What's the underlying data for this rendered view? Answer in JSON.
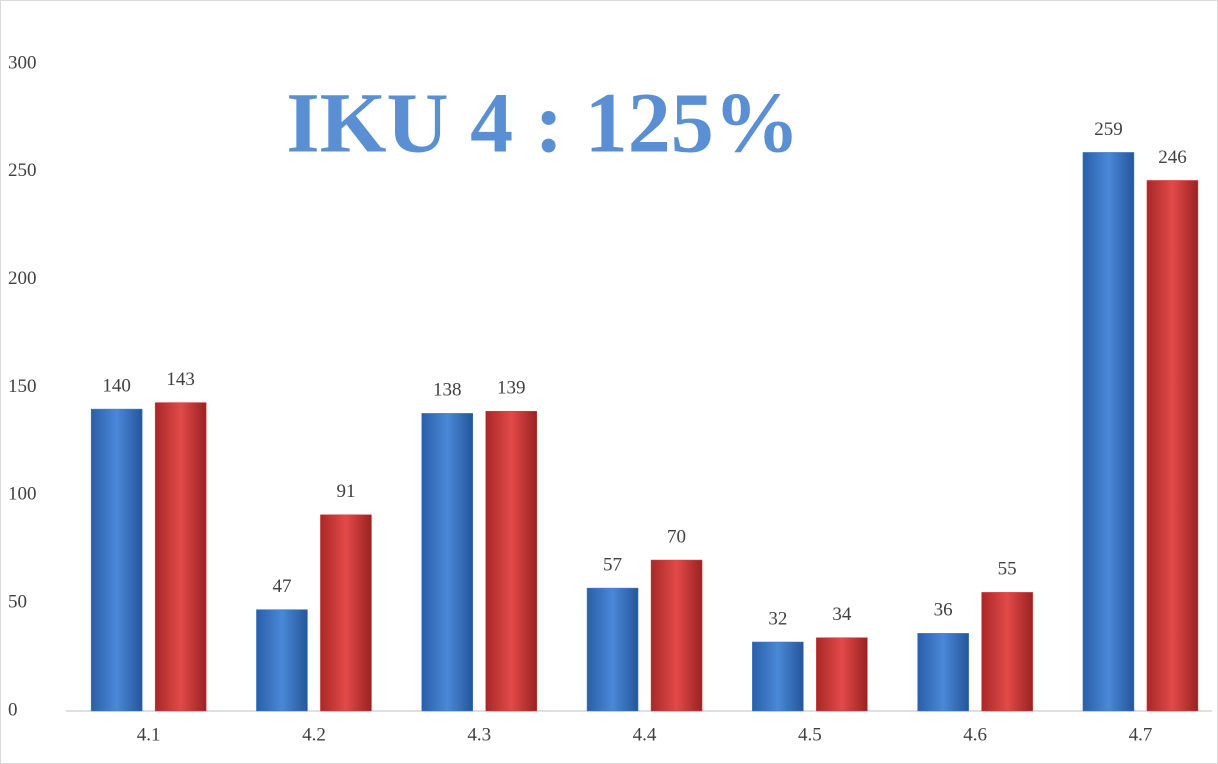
{
  "chart_data": {
    "type": "bar",
    "title": "IKU 4  : 125%",
    "categories": [
      "4.1",
      "4.2",
      "4.3",
      "4.4",
      "4.5",
      "4.6",
      "4.7"
    ],
    "series": [
      {
        "color": "#3a78c8",
        "values": [
          140,
          47,
          138,
          57,
          32,
          36,
          259
        ]
      },
      {
        "color": "#d23b3b",
        "values": [
          143,
          91,
          139,
          70,
          34,
          55,
          246
        ]
      }
    ],
    "ylim": [
      0,
      300
    ],
    "yticks": [
      0,
      50,
      100,
      150,
      200,
      250,
      300
    ],
    "grid": false
  }
}
